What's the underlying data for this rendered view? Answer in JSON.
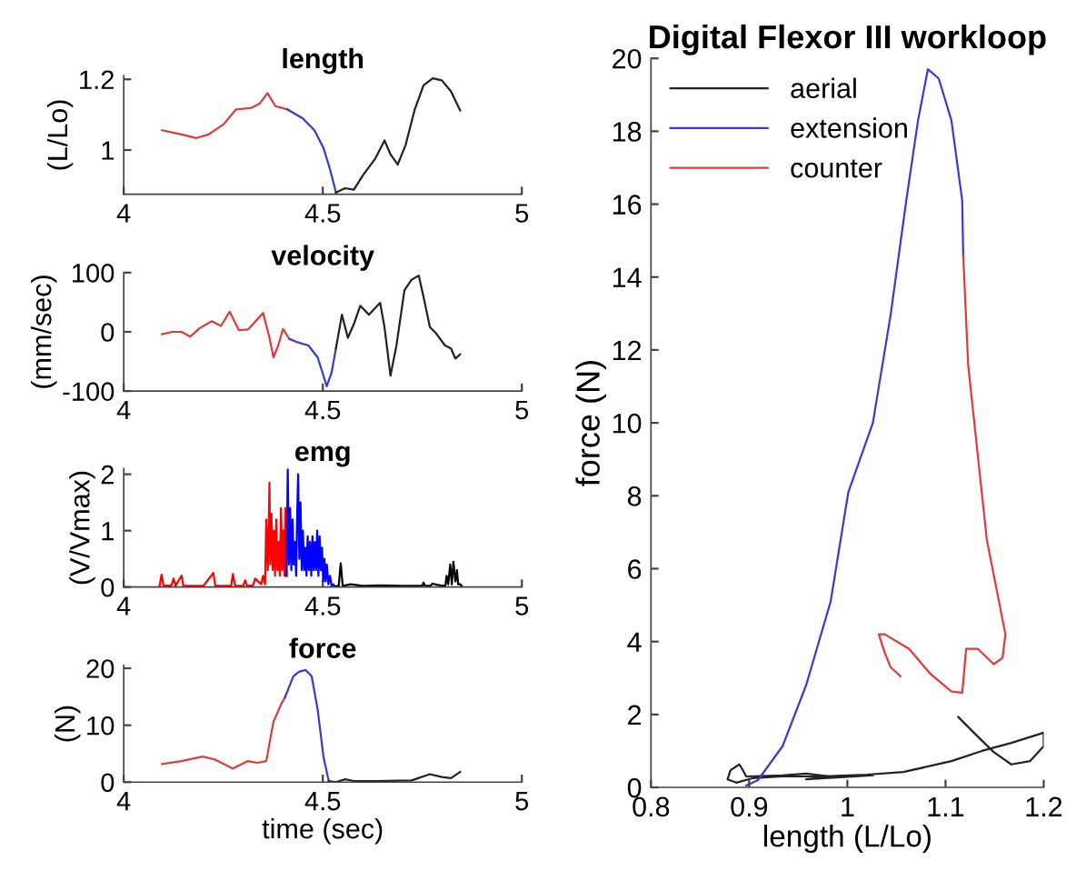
{
  "chart_data": [
    {
      "type": "line",
      "title": "length",
      "ylabel": "(L/Lo)",
      "xlim": [
        4,
        5
      ],
      "xticks": [
        4,
        4.5,
        5
      ],
      "ylim": [
        0.875,
        1.21
      ],
      "yticks": [
        1,
        1.2
      ],
      "series": [
        {
          "color": "#e03a3a",
          "x": [
            4.096,
            4.145,
            4.183,
            4.213,
            4.251,
            4.282,
            4.32,
            4.342,
            4.361,
            4.381,
            4.411
          ],
          "values": [
            1.056,
            1.044,
            1.034,
            1.044,
            1.073,
            1.115,
            1.119,
            1.132,
            1.161,
            1.124,
            1.115
          ]
        },
        {
          "color": "#3a3ad0",
          "x": [
            4.411,
            4.449,
            4.479,
            4.502,
            4.518,
            4.533
          ],
          "values": [
            1.115,
            1.09,
            1.056,
            1.005,
            0.946,
            0.88
          ]
        },
        {
          "color": "#222222",
          "x": [
            4.533,
            4.556,
            4.578,
            4.601,
            4.632,
            4.655,
            4.67,
            4.688,
            4.708,
            4.731,
            4.753,
            4.776,
            4.799,
            4.822,
            4.845
          ],
          "values": [
            0.88,
            0.892,
            0.888,
            0.929,
            0.976,
            1.027,
            0.988,
            0.959,
            1.014,
            1.115,
            1.183,
            1.203,
            1.197,
            1.166,
            1.112
          ]
        }
      ]
    },
    {
      "type": "line",
      "title": "velocity",
      "ylabel": "(mm/sec)",
      "xlim": [
        4,
        5
      ],
      "xticks": [
        4,
        4.5,
        5
      ],
      "ylim": [
        -100,
        100
      ],
      "yticks": [
        -100,
        0,
        100
      ],
      "series": [
        {
          "color": "#e03a3a",
          "x": [
            4.096,
            4.122,
            4.145,
            4.167,
            4.19,
            4.221,
            4.244,
            4.266,
            4.289,
            4.312,
            4.35,
            4.365,
            4.376,
            4.388,
            4.4,
            4.416
          ],
          "values": [
            -4,
            0,
            0,
            -8,
            6,
            18,
            10,
            34,
            3,
            4,
            32,
            -7,
            -43,
            -23,
            5,
            -12
          ]
        },
        {
          "color": "#3a3ad0",
          "x": [
            4.416,
            4.434,
            4.464,
            4.487,
            4.51,
            4.522,
            4.533
          ],
          "values": [
            -12,
            -17,
            -23,
            -43,
            -92,
            -69,
            -28
          ]
        },
        {
          "color": "#222222",
          "x": [
            4.533,
            4.548,
            4.563,
            4.578,
            4.594,
            4.616,
            4.644,
            4.655,
            4.67,
            4.685,
            4.705,
            4.723,
            4.741,
            4.753,
            4.769,
            4.784,
            4.807,
            4.822,
            4.833,
            4.845
          ],
          "values": [
            -28,
            29,
            -10,
            13,
            44,
            29,
            49,
            8,
            -74,
            -23,
            70,
            88,
            95,
            59,
            8,
            -2,
            -23,
            -28,
            -45,
            -38
          ]
        }
      ]
    },
    {
      "type": "line",
      "title": "emg",
      "ylabel": "(V/Vmax)",
      "xlim": [
        4,
        5
      ],
      "xticks": [
        4,
        4.5,
        5
      ],
      "ylim": [
        0,
        2.1
      ],
      "yticks": [
        0,
        1,
        2
      ],
      "series": [
        {
          "color": "#ff0000",
          "x": [
            4.09,
            4.095,
            4.1,
            4.12,
            4.125,
            4.13,
            4.145,
            4.15,
            4.2,
            4.225,
            4.23,
            4.27,
            4.274,
            4.28,
            4.3,
            4.305,
            4.31,
            4.325,
            4.33,
            4.345,
            4.35,
            4.355,
            4.358,
            4.362,
            4.366,
            4.368,
            4.371,
            4.374,
            4.377,
            4.38,
            4.383,
            4.386,
            4.389,
            4.392,
            4.395,
            4.398,
            4.401,
            4.404,
            4.406,
            4.409
          ],
          "values": [
            0.02,
            0.22,
            0.02,
            0.03,
            0.15,
            0.02,
            0.2,
            0.02,
            0.02,
            0.25,
            0.02,
            0.02,
            0.23,
            0.02,
            0.02,
            0.12,
            0.02,
            0.03,
            0.15,
            0.05,
            0.2,
            0.05,
            1.2,
            0.3,
            1.85,
            0.4,
            1.3,
            0.3,
            1.0,
            0.2,
            1.2,
            0.3,
            0.8,
            0.2,
            1.4,
            0.3,
            1.0,
            0.2,
            1.4,
            0.2
          ]
        },
        {
          "color": "#0000ff",
          "x": [
            4.409,
            4.412,
            4.415,
            4.418,
            4.421,
            4.424,
            4.427,
            4.43,
            4.433,
            4.436,
            4.438,
            4.441,
            4.444,
            4.447,
            4.45,
            4.453,
            4.456,
            4.459,
            4.462,
            4.465,
            4.468,
            4.471,
            4.474,
            4.477,
            4.48,
            4.483,
            4.486,
            4.489,
            4.492,
            4.495,
            4.498,
            4.501,
            4.504,
            4.507,
            4.51,
            4.514,
            4.518,
            4.522,
            4.526,
            4.53
          ],
          "values": [
            0.2,
            2.1,
            0.4,
            1.4,
            0.3,
            1.2,
            0.4,
            0.8,
            0.2,
            1.4,
            2.0,
            0.5,
            1.5,
            0.3,
            1.0,
            0.3,
            0.7,
            0.2,
            0.9,
            0.3,
            0.8,
            0.2,
            0.9,
            0.3,
            0.8,
            0.3,
            1.0,
            0.2,
            0.9,
            0.3,
            0.7,
            0.1,
            0.5,
            0.1,
            0.4,
            0.05,
            0.2,
            0.02,
            0.05,
            0.01
          ]
        },
        {
          "color": "#000000",
          "x": [
            4.53,
            4.54,
            4.545,
            4.55,
            4.57,
            4.6,
            4.65,
            4.7,
            4.75,
            4.753,
            4.757,
            4.77,
            4.775,
            4.8,
            4.808,
            4.811,
            4.815,
            4.82,
            4.824,
            4.828,
            4.833,
            4.837,
            4.84,
            4.845,
            4.85
          ],
          "values": [
            0.01,
            0.02,
            0.42,
            0.02,
            0.05,
            0.02,
            0.03,
            0.02,
            0.02,
            0.08,
            0.02,
            0.02,
            0.06,
            0.02,
            0.03,
            0.2,
            0.05,
            0.4,
            0.05,
            0.45,
            0.1,
            0.3,
            0.05,
            0.05,
            0.01
          ]
        }
      ]
    },
    {
      "type": "line",
      "title": "force",
      "xlabel": "time (sec)",
      "ylabel": "(N)",
      "xlim": [
        4,
        5
      ],
      "xticks": [
        4,
        4.5,
        5
      ],
      "ylim": [
        0,
        20.5
      ],
      "yticks": [
        0,
        10,
        20
      ],
      "series": [
        {
          "color": "#e03a3a",
          "x": [
            4.096,
            4.145,
            4.198,
            4.228,
            4.274,
            4.312,
            4.335,
            4.358,
            4.376,
            4.396,
            4.405
          ],
          "values": [
            3.2,
            3.7,
            4.5,
            4.0,
            2.4,
            3.7,
            3.4,
            3.7,
            10.6,
            13.8,
            14.9
          ]
        },
        {
          "color": "#3a3ad0",
          "x": [
            4.405,
            4.426,
            4.44,
            4.457,
            4.472,
            4.487,
            4.502,
            4.515
          ],
          "values": [
            14.9,
            18.6,
            19.4,
            19.7,
            18.6,
            12.8,
            4.3,
            0.2
          ]
        },
        {
          "color": "#222222",
          "x": [
            4.515,
            4.533,
            4.556,
            4.578,
            4.632,
            4.723,
            4.769,
            4.799,
            4.822,
            4.845
          ],
          "values": [
            0.2,
            0,
            0.5,
            0.2,
            0.2,
            0.3,
            1.4,
            0.9,
            0.7,
            1.8
          ]
        }
      ]
    },
    {
      "type": "line",
      "title": "Digital Flexor III workloop",
      "xlabel": "length (L/Lo)",
      "ylabel": "force (N)",
      "xlim": [
        0.8,
        1.2
      ],
      "xticks": [
        0.8,
        0.9,
        1,
        1.1,
        1.2
      ],
      "ylim": [
        0,
        20
      ],
      "yticks": [
        0,
        2,
        4,
        6,
        8,
        10,
        12,
        14,
        16,
        18,
        20
      ],
      "legend": "top left",
      "series": [
        {
          "name": "aerial",
          "color": "#222222",
          "x": [
            1.113,
            1.13,
            1.149,
            1.167,
            1.186,
            1.2,
            1.2,
            1.167,
            1.137,
            1.106,
            1.057,
            1.02,
            0.97,
            0.934,
            0.903,
            0.887,
            0.878,
            0.881,
            0.89,
            0.893,
            0.897,
            0.934,
            0.958,
            0.983,
            0.958,
            0.989,
            1.026
          ],
          "values": [
            1.93,
            1.47,
            0.97,
            0.63,
            0.72,
            1.13,
            1.5,
            1.22,
            1.0,
            0.72,
            0.42,
            0.35,
            0.3,
            0.3,
            0.25,
            0.13,
            0.22,
            0.47,
            0.63,
            0.5,
            0.3,
            0.33,
            0.38,
            0.3,
            0.22,
            0.27,
            0.33
          ]
        },
        {
          "name": "extension",
          "color": "#3a3ad0",
          "x": [
            0.897,
            0.909,
            0.934,
            0.958,
            0.983,
            1.001,
            1.026,
            1.044,
            1.06,
            1.072,
            1.082,
            1.093,
            1.106,
            1.117,
            1.118
          ],
          "values": [
            0.05,
            0.2,
            1.13,
            2.8,
            5.1,
            8.1,
            10,
            12.95,
            16.1,
            18.3,
            19.7,
            19.45,
            18.3,
            16.1,
            14.6
          ]
        },
        {
          "name": "counter",
          "color": "#e03a3a",
          "x": [
            1.118,
            1.123,
            1.142,
            1.161,
            1.158,
            1.149,
            1.133,
            1.121,
            1.117,
            1.106,
            1.084,
            1.063,
            1.038,
            1.032,
            1.038,
            1.044,
            1.054
          ],
          "values": [
            14.6,
            11.6,
            6.8,
            4.2,
            3.55,
            3.38,
            3.8,
            3.8,
            2.6,
            2.63,
            3.13,
            3.8,
            4.2,
            4.2,
            3.7,
            3.3,
            3.05
          ]
        }
      ]
    }
  ]
}
